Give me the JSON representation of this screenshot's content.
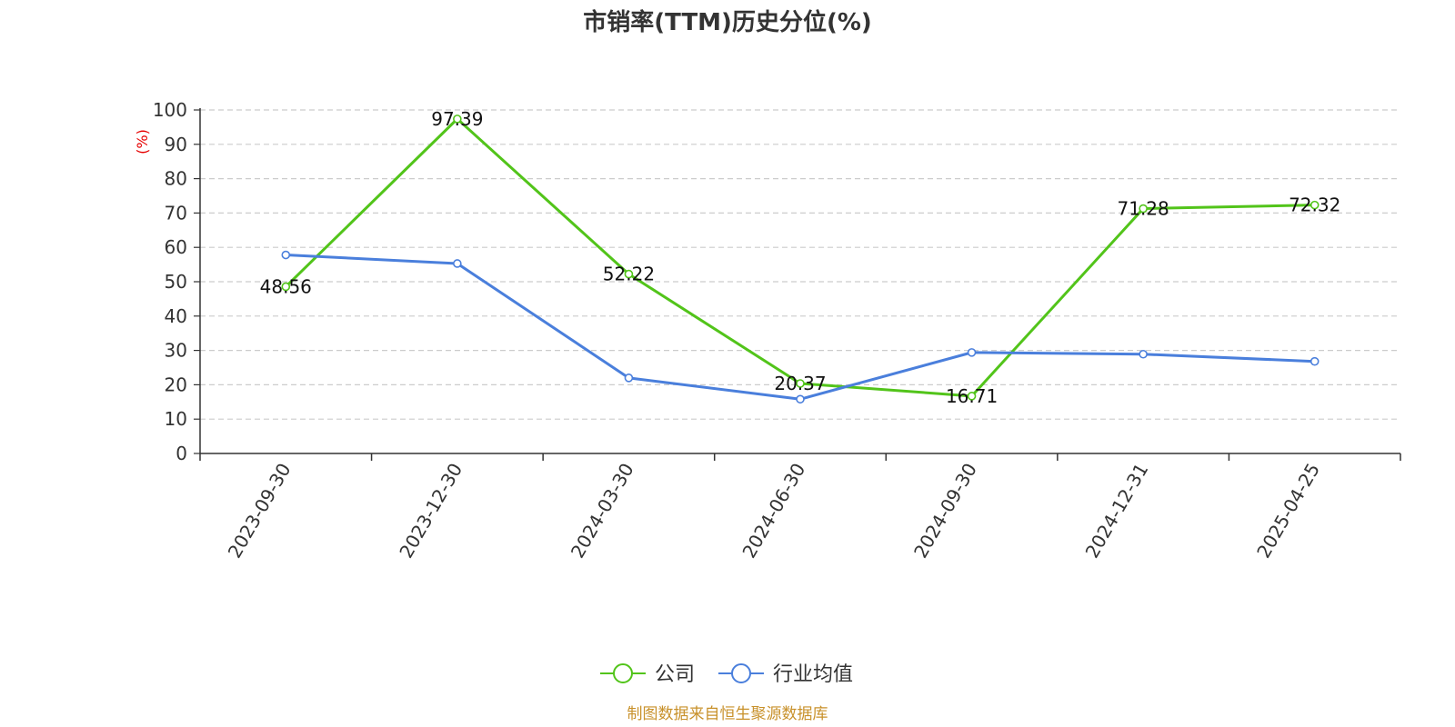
{
  "chart_data": {
    "type": "line",
    "title": "市销率(TTM)历史分位(%)",
    "ylabel": "(%)",
    "xlabel": "",
    "ylim": [
      0,
      100
    ],
    "yticks": [
      0,
      10,
      20,
      30,
      40,
      50,
      60,
      70,
      80,
      90,
      100
    ],
    "grid": true,
    "legend_position": "bottom-center",
    "categories": [
      "2023-09-30",
      "2023-12-30",
      "2024-03-30",
      "2024-06-30",
      "2024-09-30",
      "2024-12-31",
      "2025-04-25"
    ],
    "series": [
      {
        "name": "公司",
        "color": "#52c41a",
        "values": [
          48.56,
          97.39,
          52.22,
          20.37,
          16.71,
          71.28,
          72.32
        ],
        "show_labels": true
      },
      {
        "name": "行业均值",
        "color": "#4a7fdc",
        "values": [
          57.8,
          55.3,
          22.0,
          15.8,
          29.4,
          28.9,
          26.8
        ],
        "show_labels": false
      }
    ],
    "source": "制图数据来自恒生聚源数据库"
  }
}
